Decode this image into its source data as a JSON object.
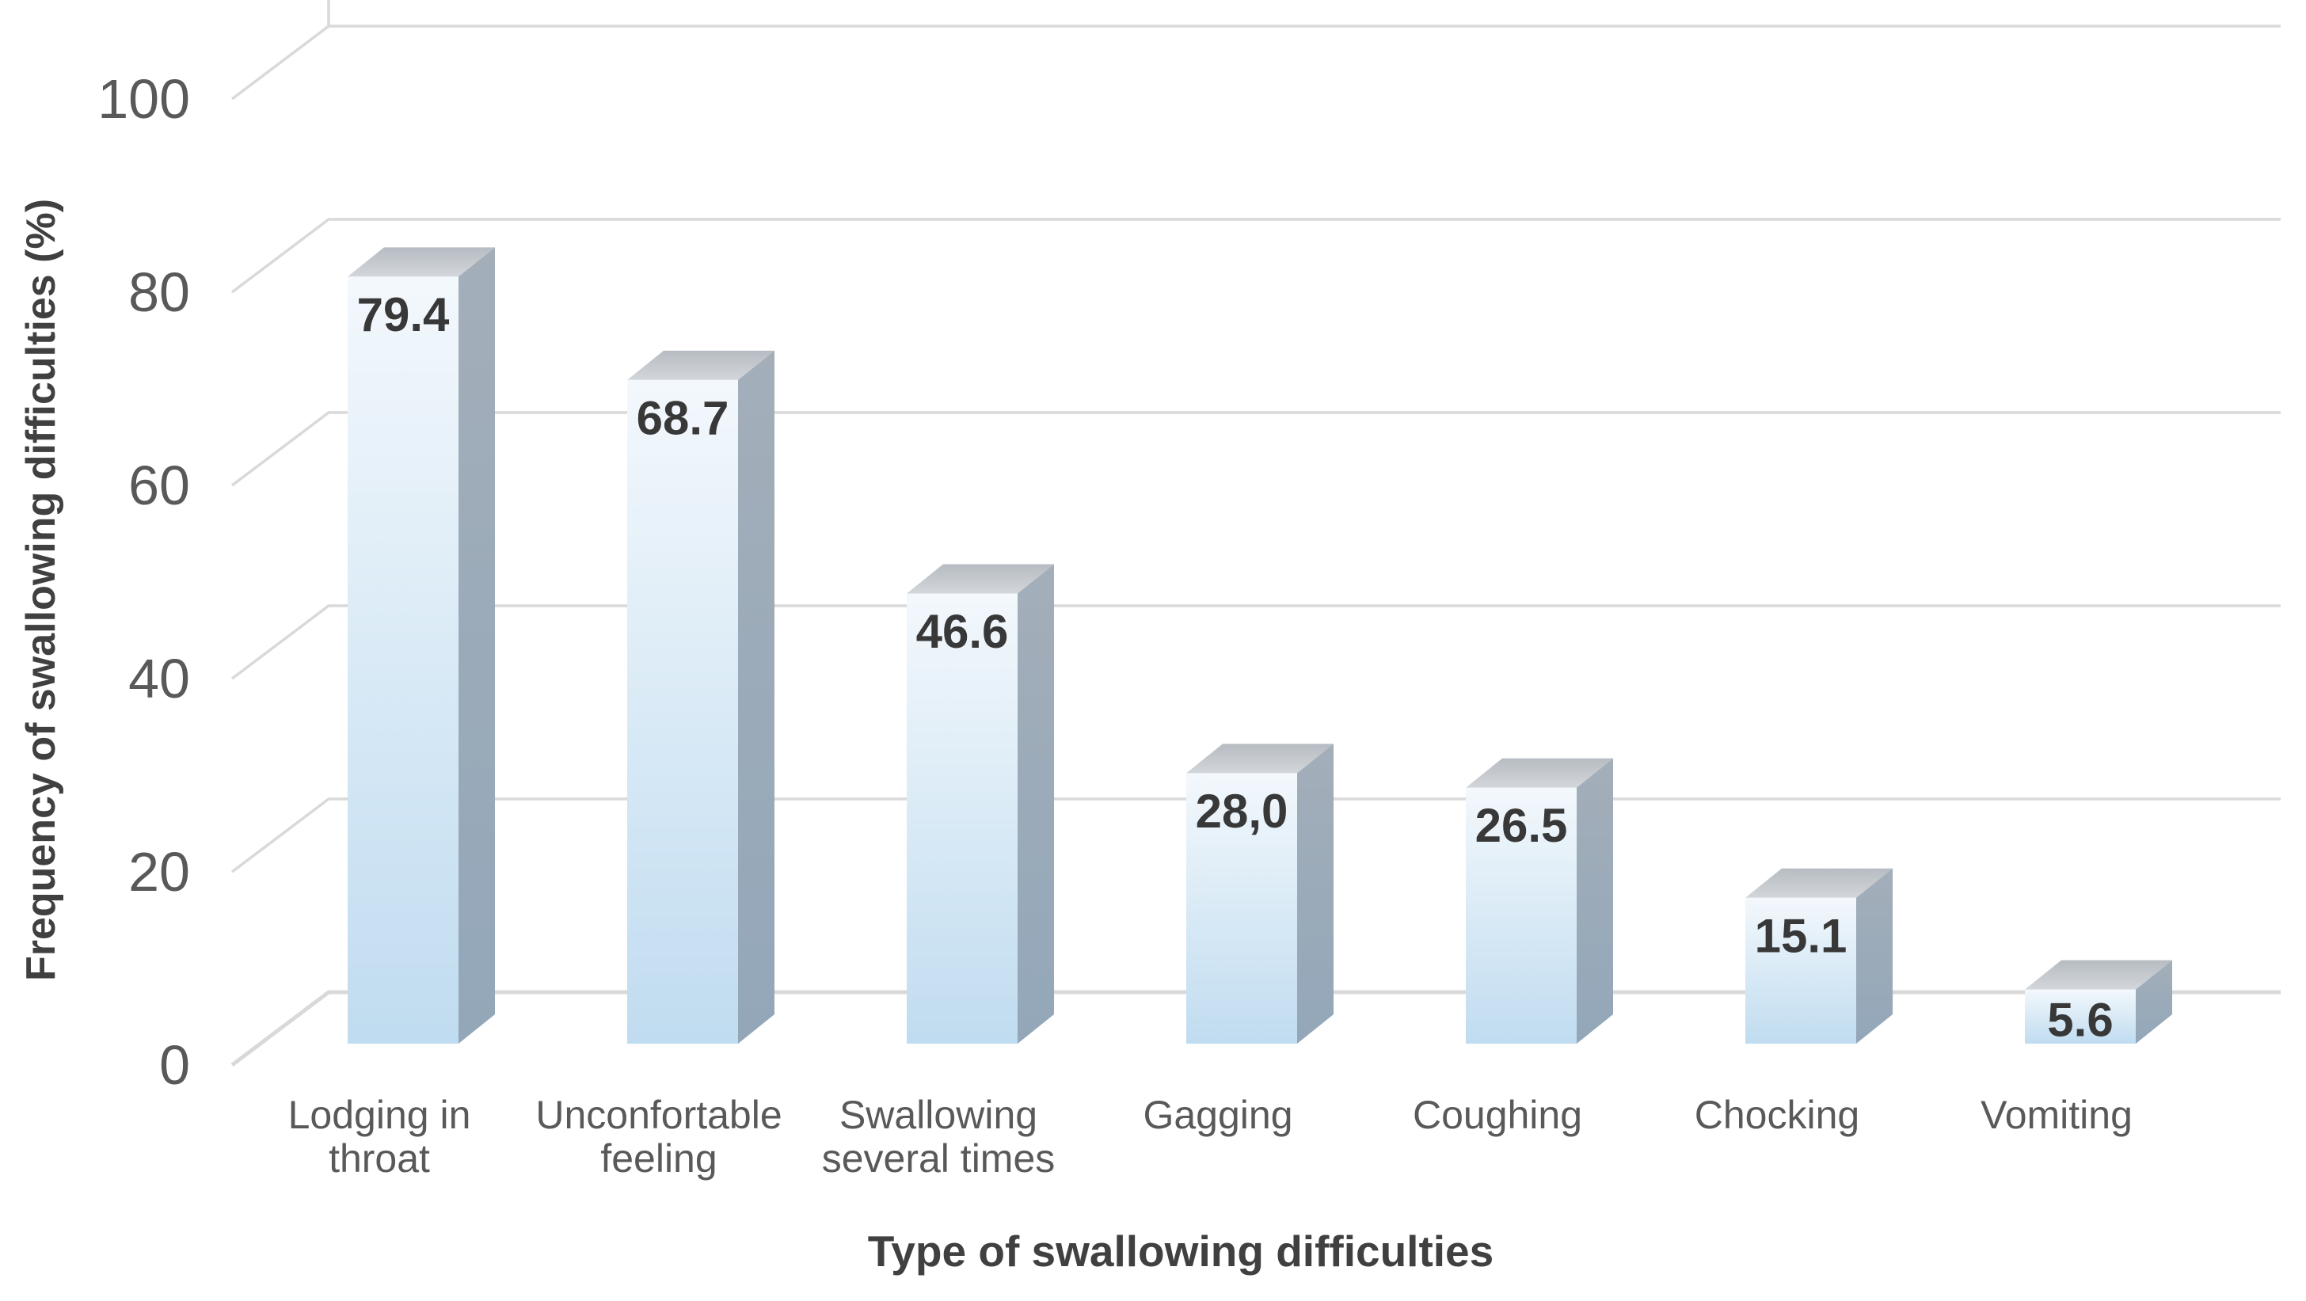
{
  "chart_data": {
    "type": "bar",
    "projection": "3d",
    "title": "",
    "xlabel": "Type of swallowing difficulties",
    "ylabel": "Frequency of swallowing difficulties (%)",
    "categories": [
      "Lodging in throat",
      "Unconfortable feeling",
      "Swallowing several times",
      "Gagging",
      "Coughing",
      "Chocking",
      "Vomiting"
    ],
    "category_label_lines": [
      [
        "Lodging in",
        "throat"
      ],
      [
        "Unconfortable",
        "feeling"
      ],
      [
        "Swallowing",
        "several times"
      ],
      [
        "Gagging"
      ],
      [
        "Coughing"
      ],
      [
        "Chocking"
      ],
      [
        "Vomiting"
      ]
    ],
    "values": [
      79.4,
      68.7,
      46.6,
      28.0,
      26.5,
      15.1,
      5.6
    ],
    "data_labels": [
      "79.4",
      "68.7",
      "46.6",
      "28,0",
      "26.5",
      "15.1",
      "5.6"
    ],
    "ylim": [
      0,
      100
    ],
    "yticks": [
      0,
      20,
      40,
      60,
      80,
      100
    ],
    "ytick_labels": [
      "0",
      "20",
      "40",
      "60",
      "80",
      "100"
    ],
    "grid": true,
    "legend": "none",
    "colors": {
      "background": "#ffffff",
      "gridline": "#d9d9d9",
      "axis_text": "#595959",
      "title_text": "#404040",
      "data_label": "#383838",
      "bar_front_top": "#f3f8fc",
      "bar_front_bottom": "#c0dcf0",
      "bar_side_top": "#a3aeb9",
      "bar_side_bottom": "#93a7b9",
      "bar_top_back": "#b6bcc2",
      "bar_top_front": "#d3d6da"
    }
  }
}
